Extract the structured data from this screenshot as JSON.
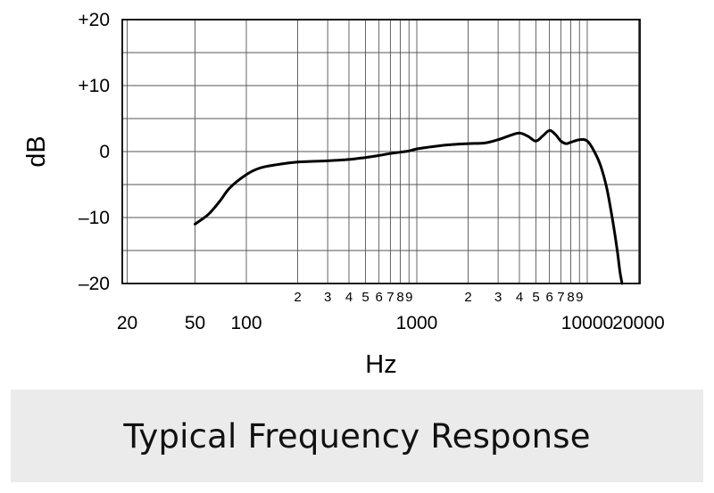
{
  "chart_data": {
    "type": "line",
    "xscale": "log",
    "xlim": [
      50,
      16000
    ],
    "ylim": [
      -20,
      20
    ],
    "grid": true,
    "xlabel": "Hz",
    "ylabel": "dB",
    "y_ticks": [
      {
        "value": 20,
        "label": "+20"
      },
      {
        "value": 10,
        "label": "+10"
      },
      {
        "value": 0,
        "label": "0"
      },
      {
        "value": -10,
        "label": "–10"
      },
      {
        "value": -20,
        "label": "–20"
      }
    ],
    "x_major_ticks": [
      {
        "value": 20,
        "label": "20"
      },
      {
        "value": 50,
        "label": "50"
      },
      {
        "value": 100,
        "label": "100"
      },
      {
        "value": 1000,
        "label": "1000"
      },
      {
        "value": 10000,
        "label": "10000"
      },
      {
        "value": 20000,
        "label": "20000"
      }
    ],
    "x_minor_ticks": [
      {
        "value": 200,
        "label": "2"
      },
      {
        "value": 300,
        "label": "3"
      },
      {
        "value": 400,
        "label": "4"
      },
      {
        "value": 500,
        "label": "5"
      },
      {
        "value": 600,
        "label": "6"
      },
      {
        "value": 700,
        "label": "7"
      },
      {
        "value": 800,
        "label": "8"
      },
      {
        "value": 900,
        "label": "9"
      },
      {
        "value": 2000,
        "label": "2"
      },
      {
        "value": 3000,
        "label": "3"
      },
      {
        "value": 4000,
        "label": "4"
      },
      {
        "value": 5000,
        "label": "5"
      },
      {
        "value": 6000,
        "label": "6"
      },
      {
        "value": 7000,
        "label": "7"
      },
      {
        "value": 8000,
        "label": "8"
      },
      {
        "value": 9000,
        "label": "9"
      }
    ],
    "series": [
      {
        "x": [
          50,
          60,
          70,
          80,
          100,
          120,
          150,
          200,
          300,
          400,
          500,
          600,
          700,
          800,
          900,
          1000,
          1200,
          1500,
          2000,
          2500,
          3000,
          3500,
          4000,
          4500,
          5000,
          5500,
          6000,
          6500,
          7000,
          7500,
          8000,
          9000,
          10000,
          11000,
          12000,
          13000,
          14000,
          15000,
          15500,
          16000
        ],
        "y": [
          -11,
          -9.5,
          -7.5,
          -5.5,
          -3.5,
          -2.5,
          -2,
          -1.6,
          -1.4,
          -1.2,
          -0.9,
          -0.6,
          -0.3,
          -0.1,
          0.1,
          0.4,
          0.7,
          1.0,
          1.2,
          1.3,
          1.8,
          2.4,
          2.8,
          2.3,
          1.6,
          2.4,
          3.2,
          2.6,
          1.6,
          1.2,
          1.4,
          1.8,
          1.6,
          0,
          -2.2,
          -5.5,
          -10,
          -15,
          -18,
          -20
        ]
      }
    ],
    "caption": "Typical Frequency Response"
  }
}
